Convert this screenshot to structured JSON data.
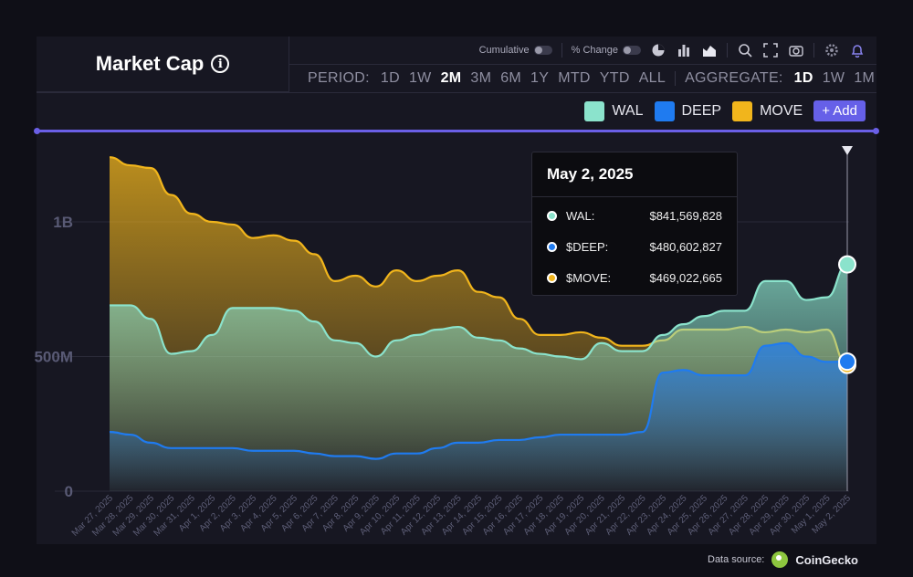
{
  "header": {
    "title": "Market Cap"
  },
  "toolbar": {
    "cumulative_label": "Cumulative",
    "pct_change_label": "% Change"
  },
  "period": {
    "label": "PERIOD:",
    "options": [
      "1D",
      "1W",
      "2M",
      "3M",
      "6M",
      "1Y",
      "MTD",
      "YTD",
      "ALL"
    ],
    "active": "2M"
  },
  "aggregate": {
    "label": "AGGREGATE:",
    "options": [
      "1D",
      "1W",
      "1M"
    ],
    "active": "1D"
  },
  "legend": [
    {
      "name": "WAL",
      "color": "#8be3cc"
    },
    {
      "name": "DEEP",
      "color": "#1f7bf0"
    },
    {
      "name": "MOVE",
      "color": "#f1b51c"
    }
  ],
  "add_label": "+ Add",
  "tooltip": {
    "date": "May 2, 2025",
    "rows": [
      {
        "name": "WAL:",
        "value": "$841,569,828",
        "color": "#8be3cc"
      },
      {
        "name": "$DEEP:",
        "value": "$480,602,827",
        "color": "#1f7bf0"
      },
      {
        "name": "$MOVE:",
        "value": "$469,022,665",
        "color": "#f1b51c"
      }
    ]
  },
  "footer": {
    "source_label": "Data source:",
    "brand": "CoinGecko"
  },
  "chart_data": {
    "type": "area",
    "x": [
      "Mar 27, 2025",
      "Mar 28, 2025",
      "Mar 29, 2025",
      "Mar 30, 2025",
      "Mar 31, 2025",
      "Apr 1, 2025",
      "Apr 2, 2025",
      "Apr 3, 2025",
      "Apr 4, 2025",
      "Apr 5, 2025",
      "Apr 6, 2025",
      "Apr 7, 2025",
      "Apr 8, 2025",
      "Apr 9, 2025",
      "Apr 10, 2025",
      "Apr 11, 2025",
      "Apr 12, 2025",
      "Apr 13, 2025",
      "Apr 14, 2025",
      "Apr 15, 2025",
      "Apr 16, 2025",
      "Apr 17, 2025",
      "Apr 18, 2025",
      "Apr 19, 2025",
      "Apr 20, 2025",
      "Apr 21, 2025",
      "Apr 22, 2025",
      "Apr 23, 2025",
      "Apr 24, 2025",
      "Apr 25, 2025",
      "Apr 26, 2025",
      "Apr 27, 2025",
      "Apr 28, 2025",
      "Apr 29, 2025",
      "Apr 30, 2025",
      "May 1, 2025",
      "May 2, 2025"
    ],
    "series": [
      {
        "name": "MOVE",
        "values": [
          1240,
          1210,
          1200,
          1100,
          1030,
          1000,
          990,
          940,
          950,
          930,
          880,
          780,
          800,
          760,
          820,
          780,
          800,
          820,
          740,
          720,
          640,
          580,
          580,
          590,
          570,
          540,
          540,
          560,
          600,
          600,
          600,
          610,
          590,
          600,
          590,
          600,
          469
        ]
      },
      {
        "name": "WAL",
        "values": [
          690,
          690,
          640,
          510,
          520,
          580,
          680,
          680,
          680,
          670,
          630,
          560,
          550,
          500,
          560,
          580,
          600,
          610,
          570,
          560,
          530,
          510,
          500,
          490,
          550,
          520,
          520,
          580,
          620,
          650,
          670,
          670,
          780,
          780,
          710,
          720,
          842
        ]
      },
      {
        "name": "DEEP",
        "values": [
          220,
          210,
          180,
          160,
          160,
          160,
          160,
          150,
          150,
          150,
          140,
          130,
          130,
          120,
          140,
          140,
          160,
          180,
          180,
          190,
          190,
          200,
          210,
          210,
          210,
          210,
          220,
          440,
          450,
          430,
          430,
          430,
          540,
          550,
          500,
          480,
          481
        ]
      }
    ],
    "yticks": [
      "0",
      "500M",
      "1B"
    ],
    "ylim": [
      0,
      1250
    ]
  }
}
